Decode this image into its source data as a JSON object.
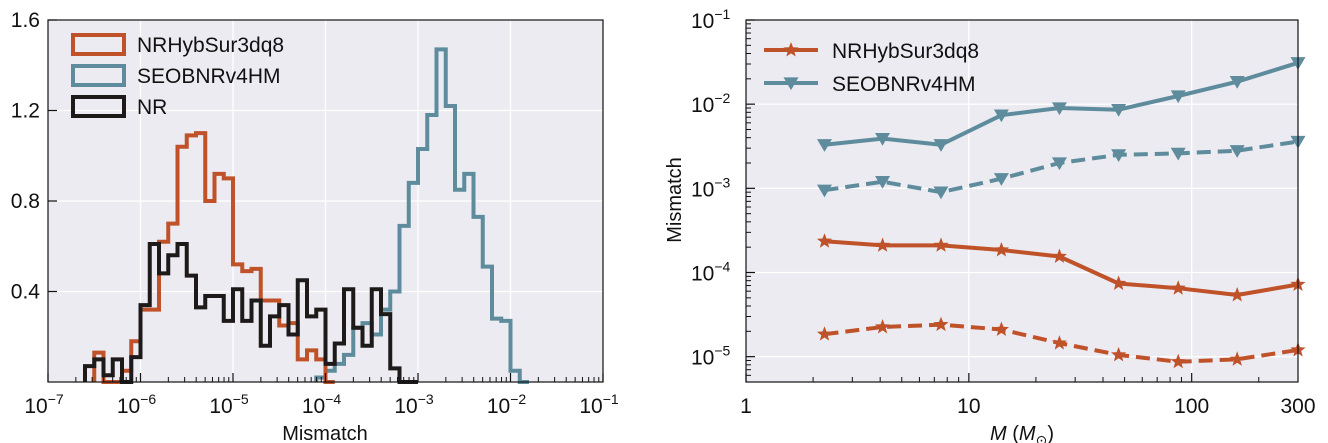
{
  "colors": {
    "nrhyb": "#c0522a",
    "seob": "#5e8c9d",
    "nr": "#1e1a1a",
    "plot_bg": "#ebebf1",
    "grid": "#ffffff"
  },
  "chart_data": [
    {
      "type": "histogram",
      "xscale": "log",
      "xlabel": "Mismatch",
      "xlim": [
        1e-07,
        0.1
      ],
      "ylim": [
        0,
        1.6
      ],
      "xticks": [
        "10^-7",
        "10^-6",
        "10^-5",
        "10^-4",
        "10^-3",
        "10^-2",
        "10^-1"
      ],
      "yticks": [
        "0.4",
        "0.8",
        "1.2",
        "1.6"
      ],
      "grid": true,
      "legend_position": "top-left",
      "series": [
        {
          "name": "NRHybSur3dq8",
          "color_key": "nrhyb",
          "log10_x": [
            -6.5,
            -6.4,
            -6.3,
            -6.2,
            -6.1,
            -6.0,
            -5.9,
            -5.8,
            -5.7,
            -5.6,
            -5.5,
            -5.4,
            -5.3,
            -5.2,
            -5.1,
            -5.0,
            -4.9,
            -4.8,
            -4.7,
            -4.6,
            -4.5,
            -4.4,
            -4.3,
            -4.2,
            -4.1,
            -4.0
          ],
          "y": [
            0.13,
            0.0,
            0.0,
            0.05,
            0.18,
            0.32,
            0.32,
            0.62,
            0.7,
            1.04,
            1.09,
            1.1,
            0.8,
            0.92,
            0.9,
            0.52,
            0.49,
            0.5,
            0.36,
            0.36,
            0.25,
            0.26,
            0.1,
            0.14,
            0.1,
            0.0
          ]
        },
        {
          "name": "SEOBNRv4HM",
          "color_key": "seob",
          "log10_x": [
            -4.1,
            -4.0,
            -3.9,
            -3.8,
            -3.7,
            -3.6,
            -3.5,
            -3.4,
            -3.3,
            -3.2,
            -3.1,
            -3.0,
            -2.9,
            -2.8,
            -2.7,
            -2.6,
            -2.5,
            -2.4,
            -2.3,
            -2.2,
            -2.1,
            -2.0,
            -1.9
          ],
          "y": [
            0.02,
            0.05,
            0.08,
            0.12,
            0.24,
            0.26,
            0.21,
            0.32,
            0.4,
            0.69,
            0.88,
            1.03,
            1.18,
            1.47,
            1.22,
            0.85,
            0.92,
            0.73,
            0.51,
            0.28,
            0.27,
            0.05,
            0.0
          ]
        },
        {
          "name": "NR",
          "color_key": "nr",
          "log10_x": [
            -6.6,
            -6.5,
            -6.4,
            -6.3,
            -6.2,
            -6.1,
            -6.0,
            -5.9,
            -5.8,
            -5.7,
            -5.6,
            -5.5,
            -5.4,
            -5.3,
            -5.2,
            -5.1,
            -5.0,
            -4.9,
            -4.8,
            -4.7,
            -4.6,
            -4.5,
            -4.4,
            -4.3,
            -4.2,
            -4.1,
            -4.0,
            -3.9,
            -3.8,
            -3.7,
            -3.6,
            -3.5,
            -3.4,
            -3.3,
            -3.2,
            -3.1
          ],
          "y": [
            0.07,
            0.1,
            0.03,
            0.1,
            0.0,
            0.11,
            0.34,
            0.61,
            0.48,
            0.56,
            0.61,
            0.47,
            0.33,
            0.38,
            0.38,
            0.27,
            0.41,
            0.27,
            0.36,
            0.16,
            0.29,
            0.34,
            0.21,
            0.45,
            0.29,
            0.32,
            0.08,
            0.17,
            0.41,
            0.24,
            0.16,
            0.41,
            0.3,
            0.06,
            0.0,
            0.0
          ]
        }
      ]
    },
    {
      "type": "line",
      "xscale": "log",
      "yscale": "log",
      "xlabel": "M (M⊙)",
      "ylabel": "Mismatch",
      "xlim": [
        1,
        300
      ],
      "ylim": [
        5e-06,
        0.1
      ],
      "xticks": [
        "1",
        "10",
        "100",
        "300"
      ],
      "yticks": [
        "10^-5",
        "10^-4",
        "10^-3",
        "10^-2",
        "10^-1"
      ],
      "grid": true,
      "legend_position": "top-left",
      "x": [
        2.25,
        4.1,
        7.5,
        14,
        25.5,
        47,
        87,
        160,
        300
      ],
      "series": [
        {
          "name": "NRHybSur3dq8",
          "color_key": "nrhyb",
          "marker": "star",
          "style": "solid",
          "values": [
            0.000235,
            0.00021,
            0.00021,
            0.000185,
            0.000155,
            7.4e-05,
            6.5e-05,
            5.4e-05,
            7.2e-05
          ]
        },
        {
          "color_key": "nrhyb",
          "marker": "star",
          "style": "dashed",
          "values": [
            1.85e-05,
            2.25e-05,
            2.4e-05,
            2.1e-05,
            1.45e-05,
            1.05e-05,
            8.7e-06,
            9.3e-06,
            1.2e-05
          ]
        },
        {
          "name": "SEOBNRv4HM",
          "color_key": "seob",
          "marker": "triangle-down",
          "style": "solid",
          "values": [
            0.0033,
            0.0039,
            0.0033,
            0.0074,
            0.009,
            0.0086,
            0.0125,
            0.0185,
            0.031
          ]
        },
        {
          "color_key": "seob",
          "marker": "triangle-down",
          "style": "dashed",
          "values": [
            0.00095,
            0.0012,
            0.0009,
            0.0013,
            0.002,
            0.0025,
            0.0026,
            0.0028,
            0.0036
          ]
        }
      ]
    }
  ]
}
